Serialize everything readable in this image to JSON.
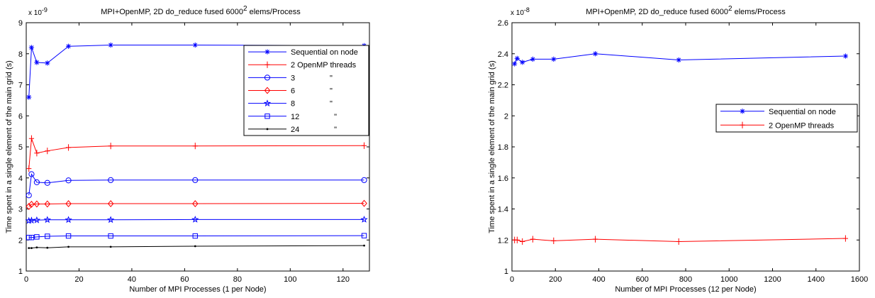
{
  "chart_data": [
    {
      "type": "line",
      "title": "MPI+OpenMP, 2D do_reduce fused 6000",
      "title_superscript": "2",
      "title_suffix": " elems/Process",
      "xlabel": "Number of MPI Processes (1 per Node)",
      "ylabel": "Time spent in a single element of the main grid (s)",
      "y_exponent_base": "x 10",
      "y_exponent": "-9",
      "xlim": [
        0,
        130
      ],
      "ylim": [
        1,
        9
      ],
      "xticks": [
        0,
        20,
        40,
        60,
        80,
        100,
        120
      ],
      "yticks": [
        1,
        2,
        3,
        4,
        5,
        6,
        7,
        8,
        9
      ],
      "xtick_labels": [
        "0",
        "20",
        "40",
        "60",
        "80",
        "100",
        "120"
      ],
      "ytick_labels": [
        "1",
        "2",
        "3",
        "4",
        "5",
        "6",
        "7",
        "8",
        "9"
      ],
      "grid": false,
      "legend_position": "top-right",
      "x": [
        1,
        2,
        4,
        8,
        16,
        32,
        64,
        128
      ],
      "series": [
        {
          "name": "Sequential on node",
          "color": "#0000ff",
          "marker": "asterisk",
          "values": [
            6.6,
            8.2,
            7.72,
            7.7,
            8.24,
            8.28,
            8.28,
            8.26
          ]
        },
        {
          "name": "2 OpenMP threads",
          "color": "#ff0000",
          "marker": "plus",
          "values": [
            4.3,
            5.27,
            4.8,
            4.87,
            4.98,
            5.03,
            5.03,
            5.04
          ]
        },
        {
          "name": "3                \"",
          "color": "#0000ff",
          "marker": "circle",
          "values": [
            3.44,
            4.12,
            3.86,
            3.84,
            3.92,
            3.93,
            3.93,
            3.93
          ]
        },
        {
          "name": "6                \"",
          "color": "#ff0000",
          "marker": "diamond",
          "values": [
            3.08,
            3.15,
            3.16,
            3.16,
            3.17,
            3.17,
            3.17,
            3.18
          ]
        },
        {
          "name": "8                \"",
          "color": "#0000ff",
          "marker": "star",
          "values": [
            2.62,
            2.63,
            2.64,
            2.65,
            2.65,
            2.65,
            2.66,
            2.66
          ]
        },
        {
          "name": "12                \"",
          "color": "#0000ff",
          "marker": "square",
          "values": [
            2.08,
            2.08,
            2.1,
            2.12,
            2.13,
            2.13,
            2.13,
            2.14
          ]
        },
        {
          "name": "24                \"",
          "color": "#000000",
          "marker": "dot",
          "values": [
            1.74,
            1.74,
            1.76,
            1.75,
            1.78,
            1.78,
            1.8,
            1.82
          ]
        }
      ]
    },
    {
      "type": "line",
      "title": "MPI+OpenMP, 2D do_reduce fused 6000",
      "title_superscript": "2",
      "title_suffix": " elems/Process",
      "xlabel": "Number of MPI Processes (12 per Node)",
      "ylabel": "Time spent in a single element of the main grid (s)",
      "y_exponent_base": "x 10",
      "y_exponent": "-8",
      "xlim": [
        0,
        1600
      ],
      "ylim": [
        1,
        2.6
      ],
      "xticks": [
        0,
        200,
        400,
        600,
        800,
        1000,
        1200,
        1400,
        1600
      ],
      "yticks": [
        1,
        1.2,
        1.4,
        1.6,
        1.8,
        2,
        2.2,
        2.4,
        2.6
      ],
      "xtick_labels": [
        "0",
        "200",
        "400",
        "600",
        "800",
        "1000",
        "1200",
        "1400",
        "1600"
      ],
      "ytick_labels": [
        "1",
        "1.2",
        "1.4",
        "1.6",
        "1.8",
        "2",
        "2.2",
        "2.4",
        "2.6"
      ],
      "grid": false,
      "legend_position": "right",
      "x": [
        12,
        24,
        48,
        96,
        192,
        384,
        768,
        1536
      ],
      "series": [
        {
          "name": "Sequential on node",
          "color": "#0000ff",
          "marker": "asterisk",
          "values": [
            2.335,
            2.37,
            2.345,
            2.365,
            2.365,
            2.4,
            2.36,
            2.385
          ]
        },
        {
          "name": "2 OpenMP threads",
          "color": "#ff0000",
          "marker": "plus",
          "values": [
            1.2,
            1.2,
            1.19,
            1.205,
            1.195,
            1.205,
            1.19,
            1.21
          ]
        }
      ]
    }
  ]
}
